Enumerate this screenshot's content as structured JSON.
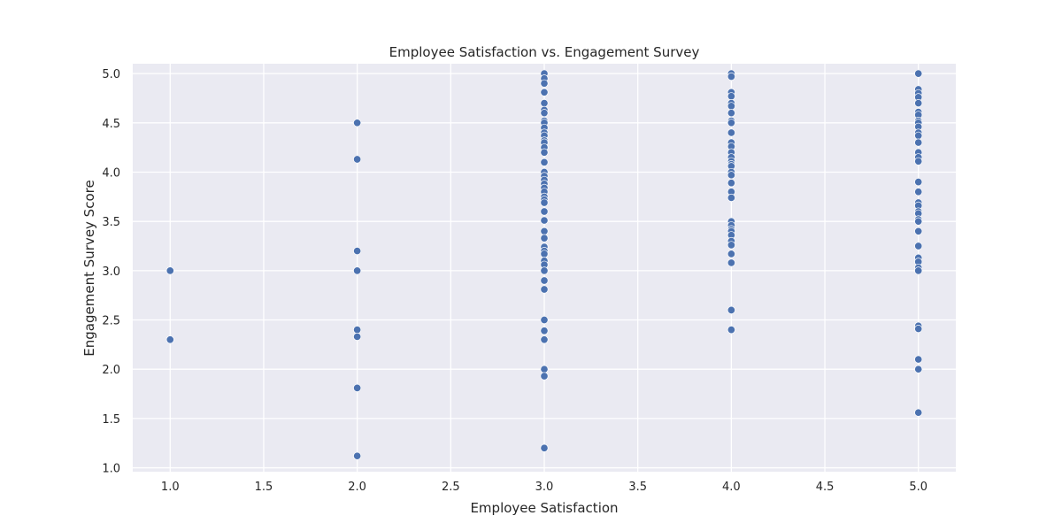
{
  "chart_data": {
    "type": "scatter",
    "title": "Employee Satisfaction vs. Engagement Survey",
    "xlabel": "Employee Satisfaction",
    "ylabel": "Engagement Survey Score",
    "xlim": [
      0.8,
      5.2
    ],
    "ylim": [
      0.96,
      5.1
    ],
    "xticks": [
      "1.0",
      "1.5",
      "2.0",
      "2.5",
      "3.0",
      "3.5",
      "4.0",
      "4.5",
      "5.0"
    ],
    "yticks": [
      "1.0",
      "1.5",
      "2.0",
      "2.5",
      "3.0",
      "3.5",
      "4.0",
      "4.5",
      "5.0"
    ],
    "grid": true,
    "background": "#eaeaf2",
    "marker_color": "#4c72b0",
    "points": [
      {
        "x": 1,
        "y": 3.0
      },
      {
        "x": 1,
        "y": 2.3
      },
      {
        "x": 2,
        "y": 4.5
      },
      {
        "x": 2,
        "y": 4.13
      },
      {
        "x": 2,
        "y": 3.2
      },
      {
        "x": 2,
        "y": 3.0
      },
      {
        "x": 2,
        "y": 2.4
      },
      {
        "x": 2,
        "y": 2.33
      },
      {
        "x": 2,
        "y": 1.81
      },
      {
        "x": 2,
        "y": 1.12
      },
      {
        "x": 3,
        "y": 5.0
      },
      {
        "x": 3,
        "y": 4.95
      },
      {
        "x": 3,
        "y": 4.9
      },
      {
        "x": 3,
        "y": 4.81
      },
      {
        "x": 3,
        "y": 4.7
      },
      {
        "x": 3,
        "y": 4.63
      },
      {
        "x": 3,
        "y": 4.6
      },
      {
        "x": 3,
        "y": 4.52
      },
      {
        "x": 3,
        "y": 4.5
      },
      {
        "x": 3,
        "y": 4.45
      },
      {
        "x": 3,
        "y": 4.4
      },
      {
        "x": 3,
        "y": 4.37
      },
      {
        "x": 3,
        "y": 4.32
      },
      {
        "x": 3,
        "y": 4.3
      },
      {
        "x": 3,
        "y": 4.25
      },
      {
        "x": 3,
        "y": 4.2
      },
      {
        "x": 3,
        "y": 4.1
      },
      {
        "x": 3,
        "y": 4.0
      },
      {
        "x": 3,
        "y": 3.96
      },
      {
        "x": 3,
        "y": 3.92
      },
      {
        "x": 3,
        "y": 3.88
      },
      {
        "x": 3,
        "y": 3.84
      },
      {
        "x": 3,
        "y": 3.8
      },
      {
        "x": 3,
        "y": 3.75
      },
      {
        "x": 3,
        "y": 3.72
      },
      {
        "x": 3,
        "y": 3.69
      },
      {
        "x": 3,
        "y": 3.6
      },
      {
        "x": 3,
        "y": 3.51
      },
      {
        "x": 3,
        "y": 3.4
      },
      {
        "x": 3,
        "y": 3.33
      },
      {
        "x": 3,
        "y": 3.24
      },
      {
        "x": 3,
        "y": 3.2
      },
      {
        "x": 3,
        "y": 3.17
      },
      {
        "x": 3,
        "y": 3.1
      },
      {
        "x": 3,
        "y": 3.06
      },
      {
        "x": 3,
        "y": 3.0
      },
      {
        "x": 3,
        "y": 2.9
      },
      {
        "x": 3,
        "y": 2.81
      },
      {
        "x": 3,
        "y": 2.5
      },
      {
        "x": 3,
        "y": 2.39
      },
      {
        "x": 3,
        "y": 2.3
      },
      {
        "x": 3,
        "y": 2.0
      },
      {
        "x": 3,
        "y": 1.93
      },
      {
        "x": 3,
        "y": 1.2
      },
      {
        "x": 4,
        "y": 5.0
      },
      {
        "x": 4,
        "y": 4.97
      },
      {
        "x": 4,
        "y": 4.81
      },
      {
        "x": 4,
        "y": 4.77
      },
      {
        "x": 4,
        "y": 4.7
      },
      {
        "x": 4,
        "y": 4.67
      },
      {
        "x": 4,
        "y": 4.6
      },
      {
        "x": 4,
        "y": 4.52
      },
      {
        "x": 4,
        "y": 4.5
      },
      {
        "x": 4,
        "y": 4.4
      },
      {
        "x": 4,
        "y": 4.3
      },
      {
        "x": 4,
        "y": 4.26
      },
      {
        "x": 4,
        "y": 4.2
      },
      {
        "x": 4,
        "y": 4.15
      },
      {
        "x": 4,
        "y": 4.11
      },
      {
        "x": 4,
        "y": 4.08
      },
      {
        "x": 4,
        "y": 4.06
      },
      {
        "x": 4,
        "y": 4.0
      },
      {
        "x": 4,
        "y": 3.97
      },
      {
        "x": 4,
        "y": 3.89
      },
      {
        "x": 4,
        "y": 3.8
      },
      {
        "x": 4,
        "y": 3.74
      },
      {
        "x": 4,
        "y": 3.5
      },
      {
        "x": 4,
        "y": 3.46
      },
      {
        "x": 4,
        "y": 3.42
      },
      {
        "x": 4,
        "y": 3.4
      },
      {
        "x": 4,
        "y": 3.36
      },
      {
        "x": 4,
        "y": 3.3
      },
      {
        "x": 4,
        "y": 3.26
      },
      {
        "x": 4,
        "y": 3.17
      },
      {
        "x": 4,
        "y": 3.08
      },
      {
        "x": 4,
        "y": 2.6
      },
      {
        "x": 4,
        "y": 2.4
      },
      {
        "x": 5,
        "y": 5.0
      },
      {
        "x": 5,
        "y": 4.84
      },
      {
        "x": 5,
        "y": 4.8
      },
      {
        "x": 5,
        "y": 4.76
      },
      {
        "x": 5,
        "y": 4.7
      },
      {
        "x": 5,
        "y": 4.61
      },
      {
        "x": 5,
        "y": 4.58
      },
      {
        "x": 5,
        "y": 4.52
      },
      {
        "x": 5,
        "y": 4.5
      },
      {
        "x": 5,
        "y": 4.46
      },
      {
        "x": 5,
        "y": 4.4
      },
      {
        "x": 5,
        "y": 4.37
      },
      {
        "x": 5,
        "y": 4.3
      },
      {
        "x": 5,
        "y": 4.2
      },
      {
        "x": 5,
        "y": 4.15
      },
      {
        "x": 5,
        "y": 4.11
      },
      {
        "x": 5,
        "y": 3.9
      },
      {
        "x": 5,
        "y": 3.8
      },
      {
        "x": 5,
        "y": 3.69
      },
      {
        "x": 5,
        "y": 3.66
      },
      {
        "x": 5,
        "y": 3.6
      },
      {
        "x": 5,
        "y": 3.58
      },
      {
        "x": 5,
        "y": 3.52
      },
      {
        "x": 5,
        "y": 3.5
      },
      {
        "x": 5,
        "y": 3.4
      },
      {
        "x": 5,
        "y": 3.25
      },
      {
        "x": 5,
        "y": 3.13
      },
      {
        "x": 5,
        "y": 3.09
      },
      {
        "x": 5,
        "y": 3.03
      },
      {
        "x": 5,
        "y": 3.0
      },
      {
        "x": 5,
        "y": 2.44
      },
      {
        "x": 5,
        "y": 2.41
      },
      {
        "x": 5,
        "y": 2.1
      },
      {
        "x": 5,
        "y": 2.0
      },
      {
        "x": 5,
        "y": 1.56
      }
    ]
  }
}
